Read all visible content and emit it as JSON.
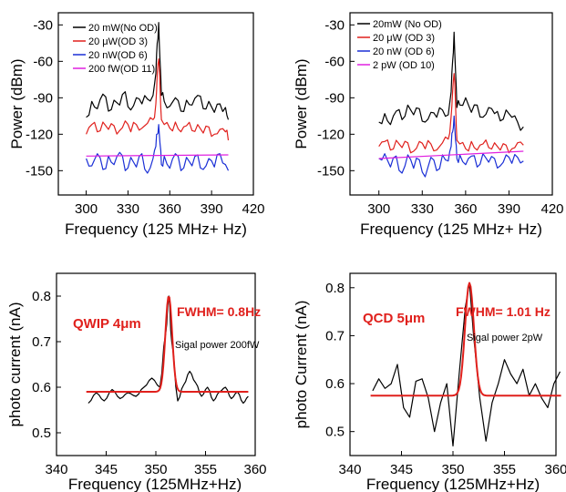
{
  "chart_data": [
    {
      "type": "line",
      "xlabel": "Frequency (125 MHz+ Hz)",
      "ylabel": "Power (dBm)",
      "xlim": [
        280,
        420
      ],
      "ylim": [
        -170,
        -20
      ],
      "xticks": [
        "300",
        "330",
        "360",
        "390",
        "420"
      ],
      "yticks": [
        "-30",
        "-60",
        "-90",
        "-120",
        "-150"
      ],
      "legend_position": "top-left",
      "series": [
        {
          "name": "20 mW(No OD)",
          "color": "#000000",
          "x": [
            300,
            304,
            308,
            312,
            316,
            320,
            324,
            328,
            332,
            336,
            340,
            344,
            348,
            350,
            351,
            352,
            353,
            354,
            356,
            360,
            364,
            368,
            372,
            376,
            380,
            384,
            388,
            392,
            396,
            400,
            402
          ],
          "y": [
            -106,
            -93,
            -99,
            -87,
            -101,
            -92,
            -96,
            -85,
            -100,
            -90,
            -95,
            -91,
            -88,
            -70,
            -45,
            -28,
            -60,
            -88,
            -93,
            -97,
            -90,
            -101,
            -92,
            -96,
            -88,
            -99,
            -93,
            -102,
            -95,
            -98,
            -108
          ]
        },
        {
          "name": "20 μW(OD 3)",
          "color": "#e0201c",
          "x": [
            300,
            304,
            308,
            312,
            316,
            320,
            324,
            328,
            332,
            336,
            340,
            344,
            348,
            350,
            351,
            352,
            353,
            354,
            356,
            360,
            364,
            368,
            372,
            376,
            380,
            384,
            388,
            392,
            396,
            400,
            402
          ],
          "y": [
            -120,
            -112,
            -118,
            -110,
            -116,
            -113,
            -117,
            -109,
            -118,
            -112,
            -115,
            -111,
            -108,
            -95,
            -70,
            -58,
            -82,
            -108,
            -112,
            -115,
            -110,
            -118,
            -113,
            -117,
            -112,
            -119,
            -114,
            -120,
            -116,
            -118,
            -125
          ]
        },
        {
          "name": "20 nW(OD 6)",
          "color": "#1a2fd6",
          "x": [
            300,
            304,
            308,
            312,
            316,
            320,
            324,
            328,
            332,
            336,
            340,
            344,
            348,
            350,
            351,
            352,
            353,
            354,
            356,
            360,
            364,
            368,
            372,
            376,
            380,
            384,
            388,
            392,
            396,
            400,
            402
          ],
          "y": [
            -140,
            -146,
            -136,
            -149,
            -138,
            -145,
            -135,
            -150,
            -139,
            -147,
            -136,
            -152,
            -140,
            -130,
            -120,
            -112,
            -128,
            -145,
            -138,
            -148,
            -136,
            -150,
            -139,
            -146,
            -137,
            -149,
            -140,
            -147,
            -136,
            -145,
            -150
          ]
        },
        {
          "name": "200 fW(OD 11)",
          "color": "#e020e0",
          "x": [
            300,
            402
          ],
          "y": [
            -138,
            -137
          ]
        }
      ]
    },
    {
      "type": "line",
      "xlabel": "Frequency (125 MHz+ Hz)",
      "ylabel": "Power (dBm)",
      "xlim": [
        280,
        420
      ],
      "ylim": [
        -170,
        -20
      ],
      "xticks": [
        "300",
        "330",
        "360",
        "390",
        "420"
      ],
      "yticks": [
        "-30",
        "-60",
        "-90",
        "-120",
        "-150"
      ],
      "legend_position": "top-left",
      "series": [
        {
          "name": "20mW (No OD)",
          "color": "#000000",
          "x": [
            300,
            304,
            308,
            312,
            316,
            320,
            324,
            328,
            332,
            336,
            340,
            344,
            348,
            350,
            351,
            352,
            353,
            354,
            356,
            360,
            364,
            368,
            372,
            376,
            380,
            384,
            388,
            392,
            396,
            400
          ],
          "y": [
            -110,
            -103,
            -112,
            -101,
            -108,
            -96,
            -104,
            -99,
            -110,
            -102,
            -106,
            -100,
            -104,
            -85,
            -60,
            -36,
            -68,
            -98,
            -96,
            -90,
            -102,
            -96,
            -106,
            -98,
            -103,
            -109,
            -100,
            -106,
            -110,
            -114
          ]
        },
        {
          "name": "20 μW (OD 3)",
          "color": "#e0201c",
          "x": [
            300,
            304,
            308,
            312,
            316,
            320,
            324,
            328,
            332,
            336,
            340,
            344,
            348,
            350,
            351,
            352,
            353,
            354,
            356,
            360,
            364,
            368,
            372,
            376,
            380,
            384,
            388,
            392,
            396,
            400
          ],
          "y": [
            -130,
            -126,
            -133,
            -125,
            -131,
            -127,
            -134,
            -126,
            -132,
            -128,
            -133,
            -127,
            -124,
            -105,
            -85,
            -70,
            -95,
            -125,
            -128,
            -132,
            -126,
            -133,
            -128,
            -131,
            -127,
            -133,
            -129,
            -132,
            -127,
            -129
          ]
        },
        {
          "name": "20 nW (OD 6)",
          "color": "#1a2fd6",
          "x": [
            300,
            304,
            308,
            312,
            316,
            320,
            324,
            328,
            332,
            336,
            340,
            344,
            348,
            350,
            351,
            352,
            353,
            354,
            356,
            360,
            364,
            368,
            372,
            376,
            380,
            384,
            388,
            392,
            396,
            400
          ],
          "y": [
            -140,
            -136,
            -147,
            -138,
            -152,
            -137,
            -148,
            -141,
            -155,
            -139,
            -150,
            -137,
            -142,
            -130,
            -118,
            -105,
            -125,
            -140,
            -137,
            -145,
            -138,
            -147,
            -136,
            -143,
            -140,
            -146,
            -137,
            -144,
            -139,
            -142
          ]
        },
        {
          "name": "2 pW (OD 10)",
          "color": "#e020e0",
          "x": [
            300,
            400
          ],
          "y": [
            -140,
            -134
          ]
        }
      ]
    },
    {
      "type": "line",
      "xlabel": "Frequency (125MHz+Hz)",
      "ylabel": "photo current (nA)",
      "xlim": [
        340,
        360
      ],
      "ylim": [
        0.45,
        0.85
      ],
      "xticks": [
        "340",
        "345",
        "350",
        "355",
        "360"
      ],
      "yticks": [
        "0.5",
        "0.6",
        "0.7",
        "0.8"
      ],
      "annotations": [
        "QWIP 4μm",
        "FWHM= 0.8Hz",
        "Sigal power 200fW"
      ],
      "series": [
        {
          "color": "#000000",
          "x": [
            343.2,
            344,
            344.8,
            345.6,
            346.4,
            347.2,
            348,
            348.8,
            349.6,
            350.4,
            351,
            351.3,
            351.6,
            352.2,
            352.8,
            353.4,
            354,
            354.6,
            355.2,
            355.8,
            356.4,
            357,
            357.6,
            358.2,
            358.8,
            359.3
          ],
          "x_dense": true,
          "y": [
            0.565,
            0.588,
            0.57,
            0.595,
            0.575,
            0.588,
            0.58,
            0.6,
            0.62,
            0.6,
            0.72,
            0.8,
            0.7,
            0.57,
            0.605,
            0.635,
            0.61,
            0.58,
            0.6,
            0.57,
            0.59,
            0.6,
            0.575,
            0.59,
            0.565,
            0.58
          ]
        },
        {
          "color": "#e0201c",
          "fit": {
            "kind": "gauss",
            "baseline": 0.59,
            "peak": 0.8,
            "center": 351.3,
            "sigma": 0.34,
            "x0": 343,
            "x1": 359.3
          }
        }
      ]
    },
    {
      "type": "line",
      "xlabel": "Frequency (125MHz+Hz)",
      "ylabel": "photo Current (nA)",
      "xlim": [
        340,
        360
      ],
      "ylim": [
        0.45,
        0.83
      ],
      "xticks": [
        "340",
        "345",
        "350",
        "355",
        "360"
      ],
      "yticks": [
        "0.5",
        "0.6",
        "0.7",
        "0.8"
      ],
      "annotations": [
        "QCD 5μm",
        "FWHM= 1.01 Hz",
        "Sigal power 2pW"
      ],
      "series": [
        {
          "color": "#000000",
          "x": [
            342.2,
            342.8,
            343.4,
            344,
            344.6,
            345.2,
            345.8,
            346.4,
            347,
            347.6,
            348.2,
            348.8,
            349.4,
            350,
            350.6,
            351.2,
            351.6,
            352,
            352.6,
            353.2,
            353.8,
            354.4,
            355,
            355.6,
            356.2,
            356.8,
            357.4,
            358,
            358.6,
            359.2,
            359.8,
            360.4
          ],
          "y": [
            0.585,
            0.61,
            0.59,
            0.6,
            0.64,
            0.55,
            0.53,
            0.605,
            0.61,
            0.57,
            0.5,
            0.56,
            0.6,
            0.47,
            0.62,
            0.76,
            0.81,
            0.7,
            0.57,
            0.48,
            0.56,
            0.6,
            0.65,
            0.62,
            0.6,
            0.63,
            0.575,
            0.6,
            0.57,
            0.55,
            0.6,
            0.625
          ]
        },
        {
          "color": "#e0201c",
          "fit": {
            "kind": "gauss",
            "baseline": 0.575,
            "peak": 0.81,
            "center": 351.6,
            "sigma": 0.43,
            "x0": 342,
            "x1": 360.5
          }
        }
      ]
    }
  ]
}
